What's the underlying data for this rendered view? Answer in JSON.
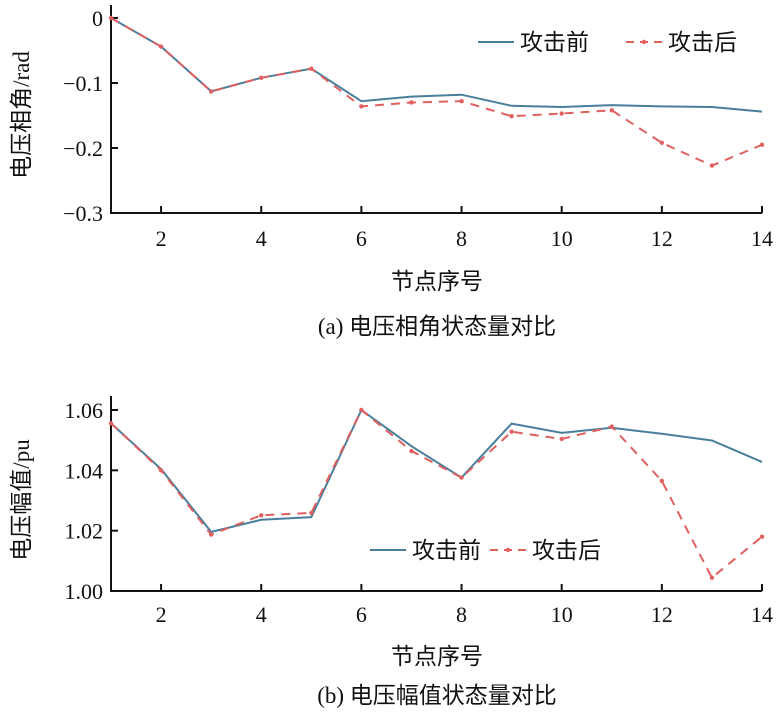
{
  "chart_data": [
    {
      "type": "line",
      "title": "(a) 电压相角状态量对比",
      "xlabel": "节点序号",
      "ylabel": "电压相角/rad",
      "xlim": [
        1,
        14
      ],
      "ylim": [
        -0.3,
        0
      ],
      "xticks": [
        2,
        4,
        6,
        8,
        10,
        12,
        14
      ],
      "yticks": [
        0,
        -0.1,
        -0.2,
        -0.3
      ],
      "ytick_labels": [
        "0",
        "−0.1",
        "−0.2",
        "−0.3"
      ],
      "legend_position": "top-right",
      "x": [
        1,
        2,
        3,
        4,
        5,
        6,
        7,
        8,
        9,
        10,
        11,
        12,
        13,
        14
      ],
      "series": [
        {
          "name": "攻击前",
          "color": "#4a7f9c",
          "style": "solid",
          "values": [
            0,
            -0.044,
            -0.113,
            -0.092,
            -0.078,
            -0.128,
            -0.121,
            -0.118,
            -0.135,
            -0.137,
            -0.134,
            -0.136,
            -0.137,
            -0.144
          ]
        },
        {
          "name": "攻击后",
          "color": "#e06060",
          "style": "dashed",
          "values": [
            0,
            -0.044,
            -0.113,
            -0.092,
            -0.078,
            -0.136,
            -0.13,
            -0.128,
            -0.151,
            -0.147,
            -0.142,
            -0.192,
            -0.227,
            -0.195
          ]
        }
      ]
    },
    {
      "type": "line",
      "title": "(b) 电压幅值状态量对比",
      "xlabel": "节点序号",
      "ylabel": "电压幅值/pu",
      "xlim": [
        1,
        14
      ],
      "ylim": [
        1.0,
        1.06
      ],
      "xticks": [
        2,
        4,
        6,
        8,
        10,
        12,
        14
      ],
      "yticks": [
        1.0,
        1.02,
        1.04,
        1.06
      ],
      "ytick_labels": [
        "1.00",
        "1.02",
        "1.04",
        "1.06"
      ],
      "legend_position": "bottom-center",
      "x": [
        1,
        2,
        3,
        4,
        5,
        6,
        7,
        8,
        9,
        10,
        11,
        12,
        13,
        14
      ],
      "series": [
        {
          "name": "攻击前",
          "color": "#4a7f9c",
          "style": "solid",
          "values": [
            1.0556,
            1.0404,
            1.0196,
            1.0236,
            1.0245,
            1.06,
            1.048,
            1.0376,
            1.0555,
            1.0524,
            1.0541,
            1.0521,
            1.0499,
            1.0428
          ]
        },
        {
          "name": "攻击后",
          "color": "#e06060",
          "style": "dashed",
          "values": [
            1.0556,
            1.04,
            1.0187,
            1.0251,
            1.0259,
            1.06,
            1.0464,
            1.0376,
            1.0528,
            1.0504,
            1.0545,
            1.0365,
            1.0044,
            1.018
          ]
        }
      ]
    }
  ]
}
